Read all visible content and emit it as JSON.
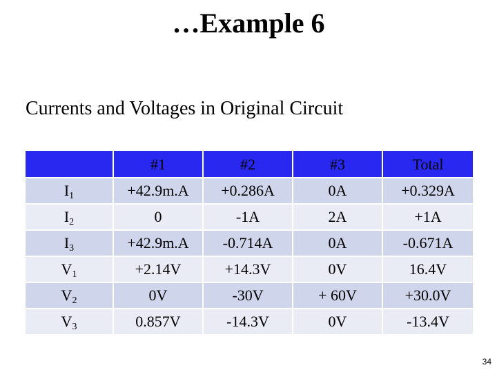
{
  "slide": {
    "title": "…Example 6",
    "subtitle": "Currents and Voltages in Original Circuit",
    "page_number": "34"
  },
  "table": {
    "headers": [
      "",
      "#1",
      "#2",
      "#3",
      "Total"
    ],
    "rows": [
      {
        "label": "I",
        "sub": "1",
        "cells": [
          "+42.9m.A",
          "+0.286A",
          "0A",
          "+0.329A"
        ]
      },
      {
        "label": "I",
        "sub": "2",
        "cells": [
          "0",
          "-1A",
          "2A",
          "+1A"
        ]
      },
      {
        "label": "I",
        "sub": "3",
        "cells": [
          "+42.9m.A",
          "-0.714A",
          "0A",
          "-0.671A"
        ]
      },
      {
        "label": "V",
        "sub": "1",
        "cells": [
          "+2.14V",
          "+14.3V",
          "0V",
          "16.4V"
        ]
      },
      {
        "label": "V",
        "sub": "2",
        "cells": [
          "0V",
          "-30V",
          "+ 60V",
          "+30.0V"
        ]
      },
      {
        "label": "V",
        "sub": "3",
        "cells": [
          "0.857V",
          "-14.3V",
          "0V",
          "-13.4V"
        ]
      }
    ]
  },
  "colors": {
    "header_bg": "#2828f0",
    "row_band_dark": "#cfd5ea",
    "row_band_light": "#e9ebf5"
  }
}
